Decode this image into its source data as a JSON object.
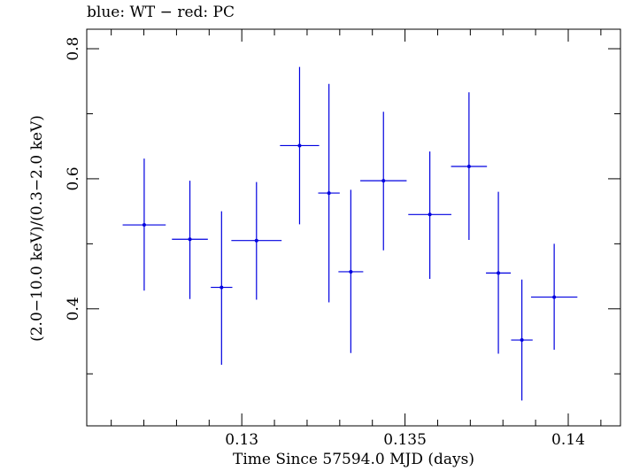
{
  "chart_data": {
    "type": "scatter",
    "title": "blue: WT − red: PC",
    "xlabel": "Time Since 57594.0 MJD (days)",
    "ylabel": "(2.0−10.0 keV)/(0.3−2.0 keV)",
    "xlim": [
      0.12525,
      0.1416
    ],
    "ylim": [
      0.22,
      0.83
    ],
    "x_ticks": [
      0.13,
      0.135,
      0.14
    ],
    "x_tick_labels": [
      "0.13",
      "0.135",
      "0.14"
    ],
    "y_ticks": [
      0.4,
      0.6,
      0.8
    ],
    "y_tick_labels": [
      "0.4",
      "0.6",
      "0.8"
    ],
    "grid": false,
    "series": [
      {
        "color": "#0000e0",
        "points": [
          {
            "x": 0.12701,
            "y": 0.529,
            "xerr": 0.00066,
            "yerr_low": 0.101,
            "yerr_high": 0.102
          },
          {
            "x": 0.12841,
            "y": 0.507,
            "xerr": 0.00055,
            "yerr_low": 0.092,
            "yerr_high": 0.09
          },
          {
            "x": 0.12938,
            "y": 0.433,
            "xerr": 0.00033,
            "yerr_low": 0.119,
            "yerr_high": 0.117
          },
          {
            "x": 0.13045,
            "y": 0.505,
            "xerr": 0.00077,
            "yerr_low": 0.091,
            "yerr_high": 0.09
          },
          {
            "x": 0.13177,
            "y": 0.651,
            "xerr": 0.0006,
            "yerr_low": 0.121,
            "yerr_high": 0.121
          },
          {
            "x": 0.13267,
            "y": 0.578,
            "xerr": 0.00033,
            "yerr_low": 0.168,
            "yerr_high": 0.168
          },
          {
            "x": 0.13334,
            "y": 0.457,
            "xerr": 0.00038,
            "yerr_low": 0.125,
            "yerr_high": 0.126
          },
          {
            "x": 0.13434,
            "y": 0.597,
            "xerr": 0.00071,
            "yerr_low": 0.107,
            "yerr_high": 0.106
          },
          {
            "x": 0.13576,
            "y": 0.545,
            "xerr": 0.00066,
            "yerr_low": 0.099,
            "yerr_high": 0.097
          },
          {
            "x": 0.13696,
            "y": 0.619,
            "xerr": 0.00055,
            "yerr_low": 0.113,
            "yerr_high": 0.114
          },
          {
            "x": 0.13786,
            "y": 0.455,
            "xerr": 0.00038,
            "yerr_low": 0.124,
            "yerr_high": 0.125
          },
          {
            "x": 0.13858,
            "y": 0.352,
            "xerr": 0.00033,
            "yerr_low": 0.093,
            "yerr_high": 0.093
          },
          {
            "x": 0.13957,
            "y": 0.418,
            "xerr": 0.00071,
            "yerr_low": 0.081,
            "yerr_high": 0.082
          }
        ]
      }
    ]
  }
}
